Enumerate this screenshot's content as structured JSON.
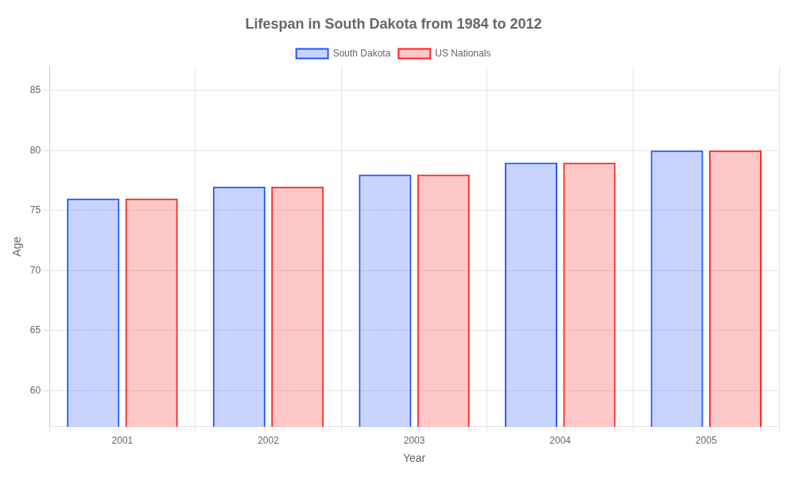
{
  "chart_data": {
    "type": "bar",
    "title": "Lifespan in South Dakota from 1984 to 2012",
    "xlabel": "Year",
    "ylabel": "Age",
    "categories": [
      "2001",
      "2002",
      "2003",
      "2004",
      "2005"
    ],
    "series": [
      {
        "name": "South Dakota",
        "color": "#2255ff",
        "values": [
          76,
          77,
          78,
          79,
          80
        ]
      },
      {
        "name": "US Nationals",
        "color": "#ff2222",
        "values": [
          76,
          77,
          78,
          79,
          80
        ]
      }
    ],
    "ylim": [
      57,
      87
    ],
    "yticks": [
      60,
      65,
      70,
      75,
      80,
      85
    ],
    "grid": true,
    "legend": "top"
  }
}
